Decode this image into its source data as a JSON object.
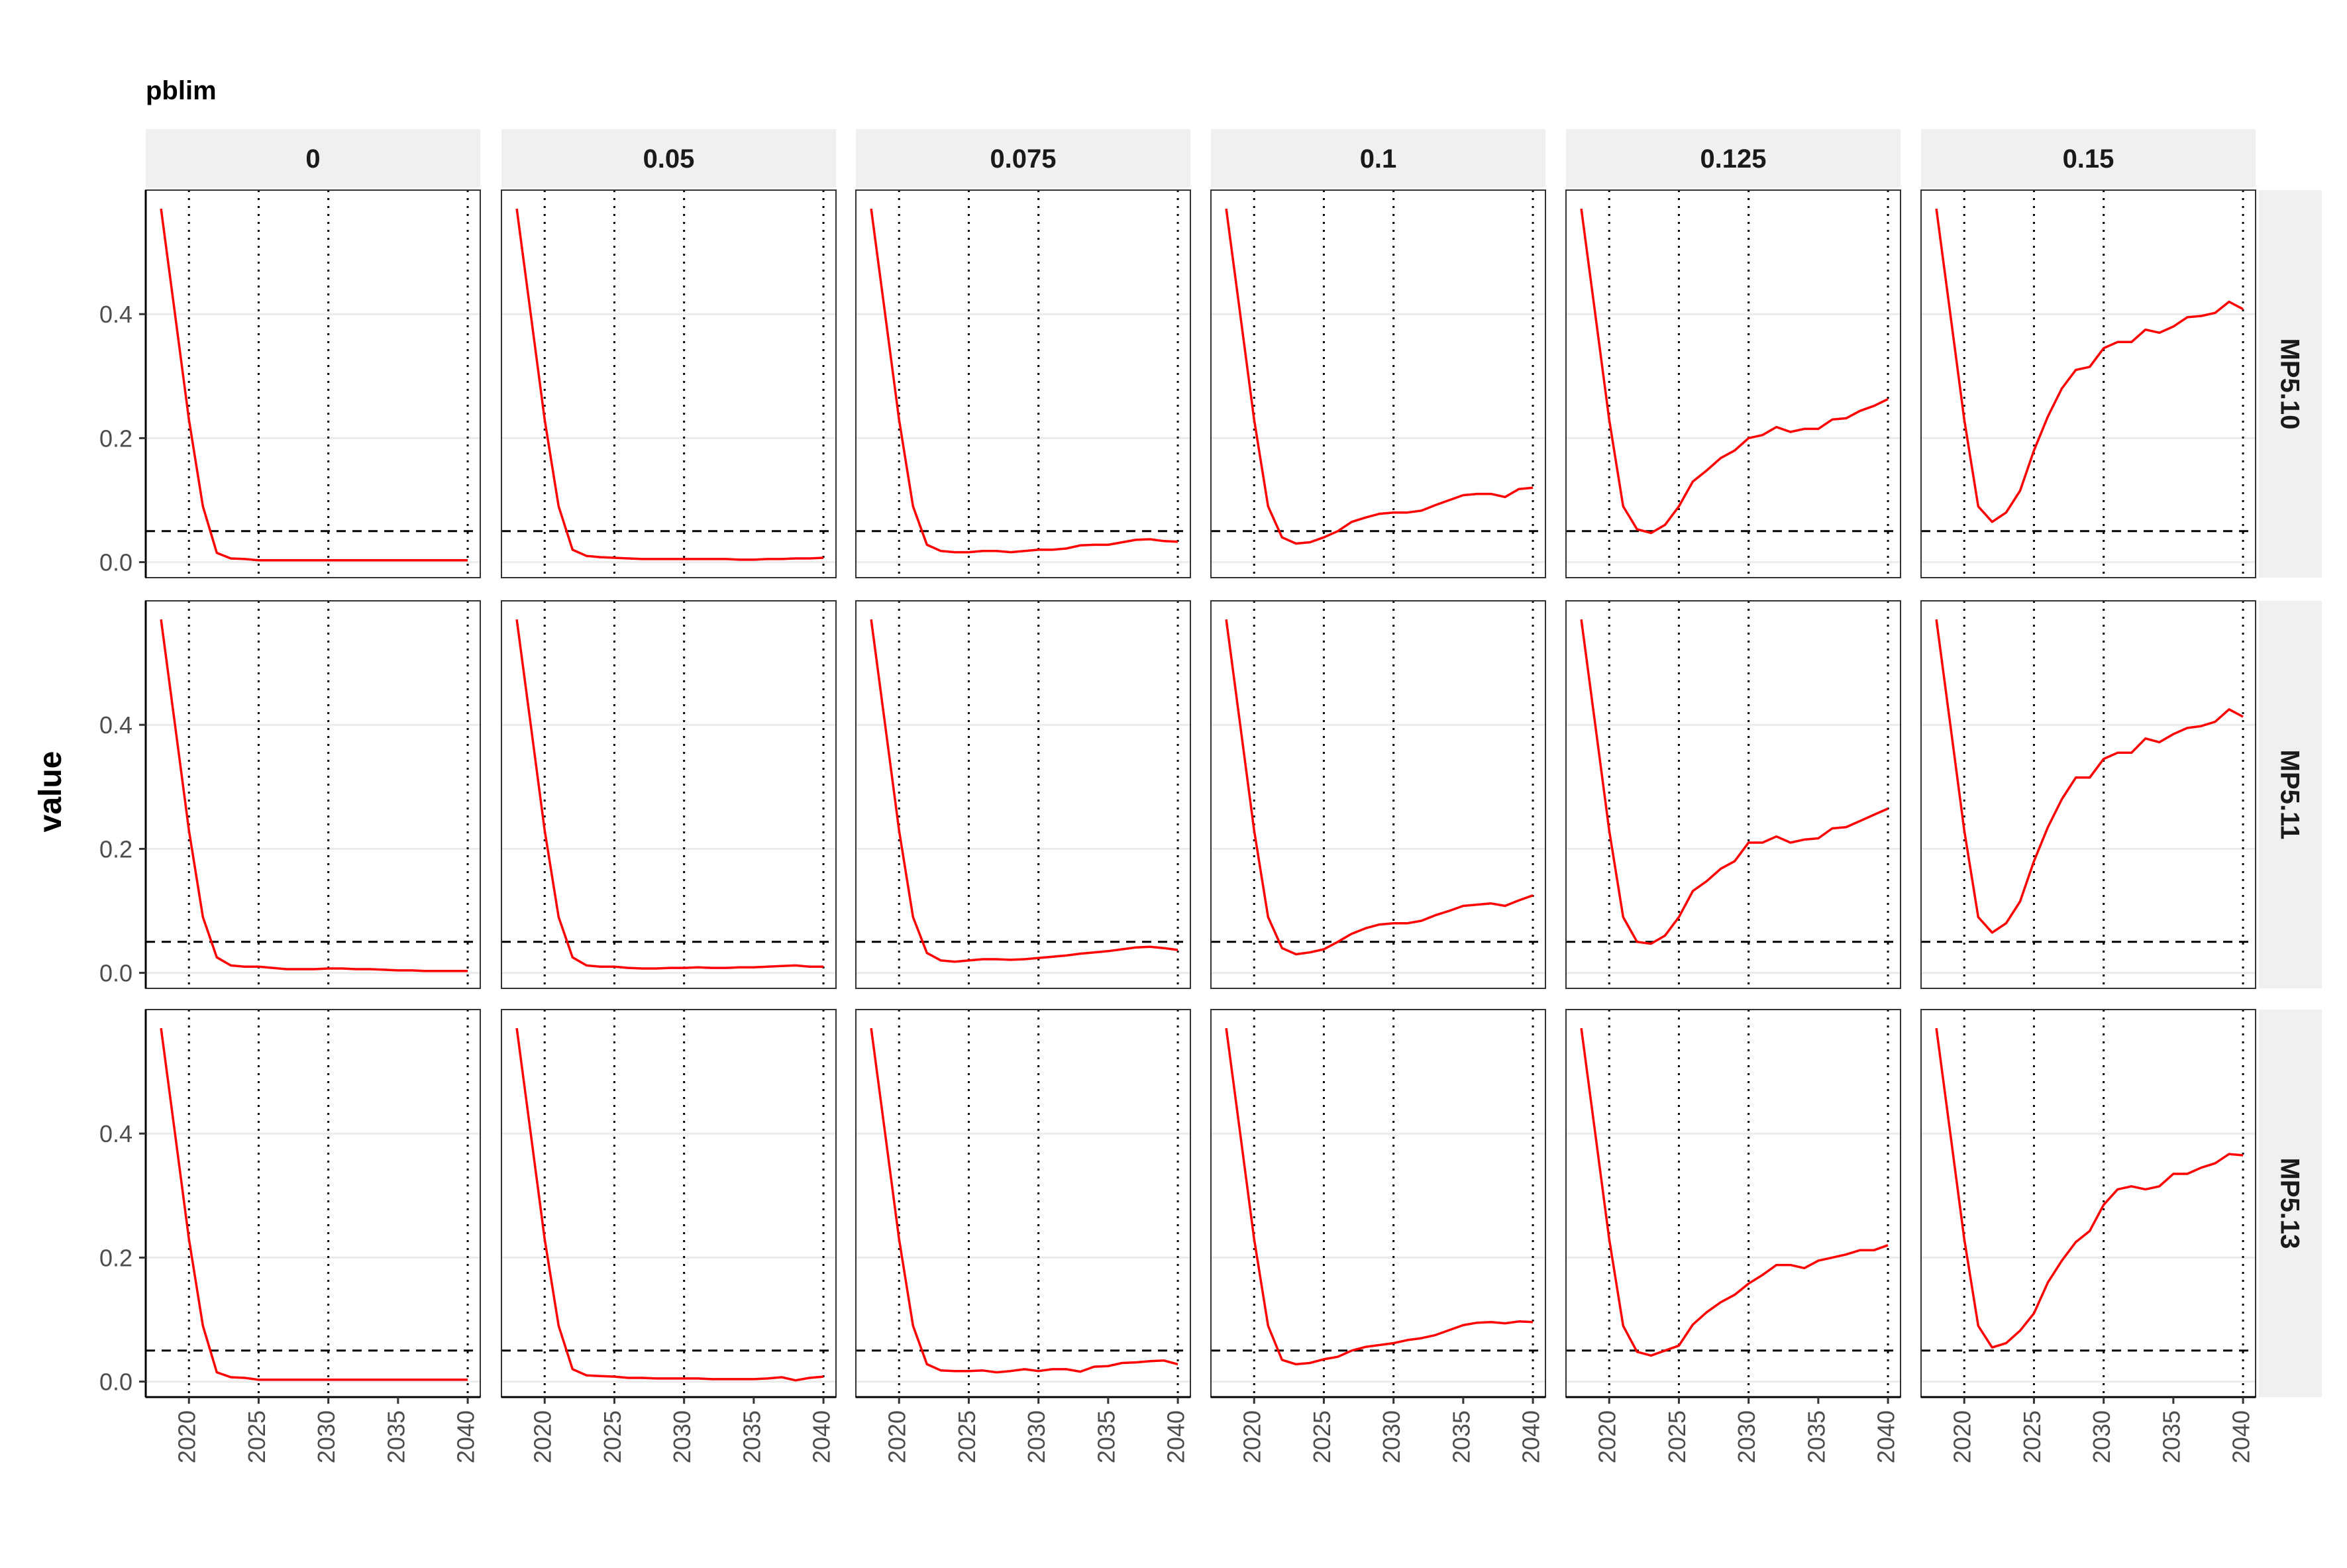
{
  "chart_data": {
    "type": "line",
    "facet_col_title": "pblim",
    "ylabel": "value",
    "xlabel": "",
    "col_labels": [
      "0",
      "0.05",
      "0.075",
      "0.1",
      "0.125",
      "0.15"
    ],
    "row_labels": [
      "MP5.10",
      "MP5.11",
      "MP5.13"
    ],
    "x": [
      2018,
      2019,
      2020,
      2021,
      2022,
      2023,
      2024,
      2025,
      2026,
      2027,
      2028,
      2029,
      2030,
      2031,
      2032,
      2033,
      2034,
      2035,
      2036,
      2037,
      2038,
      2039,
      2040
    ],
    "xlim": [
      2016.9,
      2040.9
    ],
    "ylim": [
      -0.025,
      0.6
    ],
    "x_ticks": [
      2020,
      2025,
      2030,
      2035,
      2040
    ],
    "x_tick_labels": [
      "2020",
      "2025",
      "2030",
      "2035",
      "2040"
    ],
    "y_ticks": [
      0.0,
      0.2,
      0.4
    ],
    "y_tick_labels": [
      "0.0",
      "0.2",
      "0.4"
    ],
    "reference_hline": 0.05,
    "reference_vlines": [
      2020,
      2025,
      2030,
      2040
    ],
    "line_color": "#ff0000",
    "strip_color": "#f0f0f0",
    "panels": [
      {
        "row": 0,
        "col": 0,
        "values": [
          0.57,
          0.4,
          0.23,
          0.09,
          0.015,
          0.006,
          0.005,
          0.003,
          0.003,
          0.003,
          0.003,
          0.003,
          0.003,
          0.003,
          0.003,
          0.003,
          0.003,
          0.003,
          0.003,
          0.003,
          0.003,
          0.003,
          0.003
        ]
      },
      {
        "row": 0,
        "col": 1,
        "values": [
          0.57,
          0.4,
          0.23,
          0.09,
          0.02,
          0.01,
          0.008,
          0.007,
          0.006,
          0.005,
          0.005,
          0.005,
          0.005,
          0.005,
          0.005,
          0.005,
          0.004,
          0.004,
          0.005,
          0.005,
          0.006,
          0.006,
          0.007
        ]
      },
      {
        "row": 0,
        "col": 2,
        "values": [
          0.57,
          0.4,
          0.23,
          0.09,
          0.028,
          0.018,
          0.016,
          0.016,
          0.018,
          0.018,
          0.016,
          0.018,
          0.02,
          0.02,
          0.022,
          0.027,
          0.028,
          0.028,
          0.032,
          0.036,
          0.037,
          0.034,
          0.033
        ]
      },
      {
        "row": 0,
        "col": 3,
        "values": [
          0.57,
          0.4,
          0.23,
          0.09,
          0.04,
          0.03,
          0.032,
          0.04,
          0.05,
          0.065,
          0.072,
          0.078,
          0.08,
          0.08,
          0.083,
          0.092,
          0.1,
          0.108,
          0.11,
          0.11,
          0.105,
          0.118,
          0.12
        ]
      },
      {
        "row": 0,
        "col": 4,
        "values": [
          0.57,
          0.4,
          0.23,
          0.09,
          0.053,
          0.047,
          0.06,
          0.09,
          0.13,
          0.148,
          0.168,
          0.18,
          0.2,
          0.205,
          0.218,
          0.21,
          0.215,
          0.215,
          0.23,
          0.232,
          0.244,
          0.252,
          0.263
        ]
      },
      {
        "row": 0,
        "col": 5,
        "values": [
          0.57,
          0.4,
          0.23,
          0.09,
          0.065,
          0.08,
          0.115,
          0.18,
          0.235,
          0.28,
          0.31,
          0.315,
          0.345,
          0.355,
          0.355,
          0.375,
          0.37,
          0.38,
          0.395,
          0.397,
          0.402,
          0.42,
          0.408
        ]
      },
      {
        "row": 1,
        "col": 0,
        "values": [
          0.57,
          0.4,
          0.23,
          0.09,
          0.025,
          0.012,
          0.01,
          0.01,
          0.008,
          0.006,
          0.006,
          0.006,
          0.007,
          0.007,
          0.006,
          0.006,
          0.005,
          0.004,
          0.004,
          0.003,
          0.003,
          0.003,
          0.003
        ]
      },
      {
        "row": 1,
        "col": 1,
        "values": [
          0.57,
          0.4,
          0.23,
          0.09,
          0.025,
          0.012,
          0.01,
          0.01,
          0.008,
          0.007,
          0.007,
          0.008,
          0.008,
          0.009,
          0.008,
          0.008,
          0.009,
          0.009,
          0.01,
          0.011,
          0.012,
          0.01,
          0.01
        ]
      },
      {
        "row": 1,
        "col": 2,
        "values": [
          0.57,
          0.4,
          0.23,
          0.09,
          0.032,
          0.02,
          0.018,
          0.02,
          0.022,
          0.022,
          0.021,
          0.022,
          0.024,
          0.026,
          0.028,
          0.031,
          0.033,
          0.035,
          0.038,
          0.041,
          0.042,
          0.04,
          0.037
        ]
      },
      {
        "row": 1,
        "col": 3,
        "values": [
          0.57,
          0.4,
          0.23,
          0.09,
          0.04,
          0.03,
          0.033,
          0.038,
          0.05,
          0.063,
          0.072,
          0.078,
          0.08,
          0.08,
          0.084,
          0.093,
          0.1,
          0.108,
          0.11,
          0.112,
          0.108,
          0.117,
          0.125
        ]
      },
      {
        "row": 1,
        "col": 4,
        "values": [
          0.57,
          0.4,
          0.23,
          0.09,
          0.05,
          0.047,
          0.06,
          0.09,
          0.132,
          0.148,
          0.168,
          0.18,
          0.21,
          0.21,
          0.22,
          0.21,
          0.215,
          0.217,
          0.233,
          0.235,
          0.245,
          0.255,
          0.265
        ]
      },
      {
        "row": 1,
        "col": 5,
        "values": [
          0.57,
          0.4,
          0.23,
          0.09,
          0.065,
          0.08,
          0.115,
          0.18,
          0.235,
          0.28,
          0.315,
          0.315,
          0.345,
          0.355,
          0.355,
          0.378,
          0.372,
          0.385,
          0.395,
          0.398,
          0.405,
          0.425,
          0.413
        ]
      },
      {
        "row": 2,
        "col": 0,
        "values": [
          0.57,
          0.4,
          0.23,
          0.09,
          0.015,
          0.007,
          0.006,
          0.003,
          0.003,
          0.003,
          0.003,
          0.003,
          0.003,
          0.003,
          0.003,
          0.003,
          0.003,
          0.003,
          0.003,
          0.003,
          0.003,
          0.003,
          0.003
        ]
      },
      {
        "row": 2,
        "col": 1,
        "values": [
          0.57,
          0.4,
          0.23,
          0.09,
          0.02,
          0.01,
          0.009,
          0.008,
          0.006,
          0.006,
          0.005,
          0.005,
          0.005,
          0.005,
          0.004,
          0.004,
          0.004,
          0.004,
          0.005,
          0.007,
          0.002,
          0.006,
          0.008
        ]
      },
      {
        "row": 2,
        "col": 2,
        "values": [
          0.57,
          0.4,
          0.23,
          0.09,
          0.028,
          0.018,
          0.017,
          0.017,
          0.018,
          0.015,
          0.017,
          0.02,
          0.017,
          0.02,
          0.02,
          0.016,
          0.024,
          0.025,
          0.03,
          0.031,
          0.033,
          0.034,
          0.028
        ]
      },
      {
        "row": 2,
        "col": 3,
        "values": [
          0.57,
          0.4,
          0.23,
          0.09,
          0.035,
          0.028,
          0.03,
          0.036,
          0.04,
          0.05,
          0.056,
          0.059,
          0.062,
          0.067,
          0.07,
          0.075,
          0.083,
          0.091,
          0.095,
          0.096,
          0.094,
          0.097,
          0.096
        ]
      },
      {
        "row": 2,
        "col": 4,
        "values": [
          0.57,
          0.4,
          0.23,
          0.09,
          0.048,
          0.042,
          0.05,
          0.058,
          0.092,
          0.112,
          0.128,
          0.14,
          0.158,
          0.172,
          0.188,
          0.188,
          0.183,
          0.195,
          0.2,
          0.205,
          0.212,
          0.212,
          0.22
        ]
      },
      {
        "row": 2,
        "col": 5,
        "values": [
          0.57,
          0.4,
          0.23,
          0.09,
          0.055,
          0.062,
          0.082,
          0.11,
          0.16,
          0.195,
          0.225,
          0.243,
          0.285,
          0.31,
          0.315,
          0.31,
          0.315,
          0.335,
          0.335,
          0.345,
          0.352,
          0.367,
          0.365
        ]
      }
    ]
  }
}
